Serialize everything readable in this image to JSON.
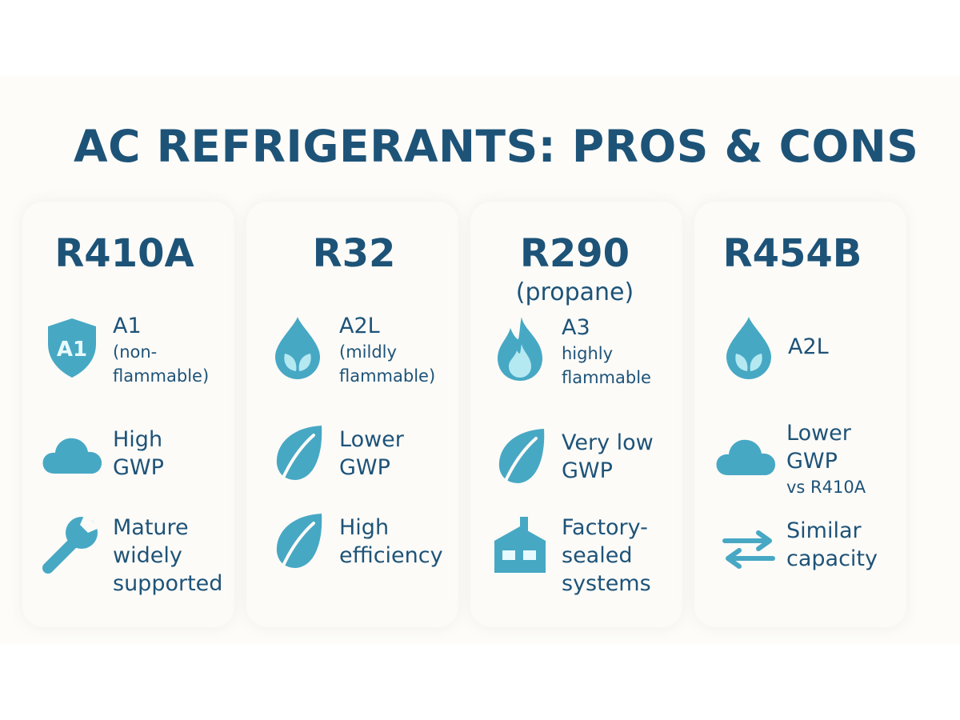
{
  "title": "AC REFRIGERANTS: PROS & CONS",
  "colors": {
    "heading": "#1e5378",
    "icon_primary": "#47a8c4",
    "icon_light": "#b5e9f2",
    "panel_background": "#fdfcf9"
  },
  "cards": [
    {
      "name": "R410A",
      "subtitle": "",
      "rows": [
        {
          "icon": "shield-a1-icon",
          "icon_label": "A1",
          "line1": "A1",
          "line2": "(non-",
          "line3": "flammable)"
        },
        {
          "icon": "cloud-icon",
          "line1": "High",
          "line2": "GWP"
        },
        {
          "icon": "wrench-icon",
          "line1": "Mature",
          "line2": "widely",
          "line3": "supported"
        }
      ]
    },
    {
      "name": "R32",
      "subtitle": "",
      "rows": [
        {
          "icon": "droplet-leaf-icon",
          "line1": "A2L",
          "line2": "(mildly",
          "line3": "flammable)"
        },
        {
          "icon": "leaf-icon",
          "line1": "Lower",
          "line2": "GWP"
        },
        {
          "icon": "leaf-icon",
          "line1": "High",
          "line2": "efficiency"
        }
      ]
    },
    {
      "name": "R290",
      "subtitle": "(propane)",
      "rows": [
        {
          "icon": "flame-icon",
          "line1": "A3",
          "line2": "highly",
          "line3": "flammable"
        },
        {
          "icon": "leaf-icon",
          "line1": "Very low",
          "line2": "GWP"
        },
        {
          "icon": "factory-icon",
          "line1": "Factory-",
          "line2": "sealed",
          "line3": "systems"
        }
      ]
    },
    {
      "name": "R454B",
      "subtitle": "",
      "rows": [
        {
          "icon": "droplet-leaf-icon",
          "line1": "A2L"
        },
        {
          "icon": "cloud-icon",
          "line1": "Lower",
          "line2": "GWP",
          "line3": "vs R410A"
        },
        {
          "icon": "arrows-exchange-icon",
          "line1": "Similar",
          "line2": "capacity"
        }
      ]
    }
  ]
}
